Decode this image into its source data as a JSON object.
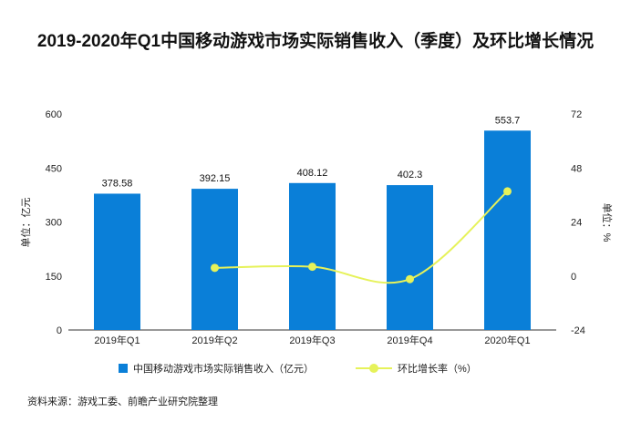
{
  "title": "2019-2020年Q1中国移动游戏市场实际销售收入（季度）及环比增长情况",
  "source": "资料来源：游戏工委、前瞻产业研究院整理",
  "chart_data": {
    "type": "bar",
    "categories": [
      "2019年Q1",
      "2019年Q2",
      "2019年Q3",
      "2019年Q4",
      "2020年Q1"
    ],
    "series": [
      {
        "name": "中国移动游戏市场实际销售收入（亿元）",
        "type": "bar",
        "axis": "left",
        "values": [
          378.58,
          392.15,
          408.12,
          402.3,
          553.7
        ],
        "labels": [
          "378.58",
          "392.15",
          "408.12",
          "402.3",
          "553.7"
        ],
        "color": "#0a7fd8"
      },
      {
        "name": "环比增长率（%）",
        "type": "line",
        "axis": "right",
        "values": [
          null,
          3.6,
          4.1,
          -1.4,
          37.6
        ],
        "color": "#e6f25a"
      }
    ],
    "y_left": {
      "label": "单位：亿元",
      "min": 0,
      "max": 600,
      "ticks": [
        0,
        150,
        300,
        450,
        600
      ]
    },
    "y_right": {
      "label": "单位：%",
      "min": -24,
      "max": 72,
      "ticks": [
        -24,
        0,
        24,
        48,
        72
      ]
    },
    "grid": false,
    "legend": "bottom"
  }
}
